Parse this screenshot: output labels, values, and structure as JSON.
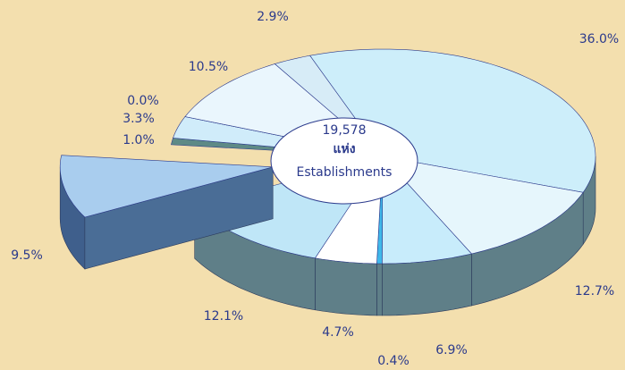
{
  "chart_data": {
    "type": "pie",
    "center_text": [
      "19,578",
      "แห่ง",
      "Establishments"
    ],
    "values": [
      36.0,
      12.7,
      6.9,
      0.4,
      4.7,
      12.1,
      9.5,
      1.0,
      3.3,
      0.0,
      10.5,
      2.9
    ],
    "value_labels": [
      "36.0%",
      "12.7%",
      "6.9%",
      "0.4%",
      "4.7%",
      "12.1%",
      "9.5%",
      "1.0%",
      "3.3%",
      "0.0%",
      "10.5%",
      "2.9%"
    ],
    "colors": [
      "#cdeefa",
      "#e6f6fc",
      "#c8ecfb",
      "#3fb8ea",
      "#ffffff",
      "#bfe6f7",
      "#a9cdee",
      "#5e8a86",
      "#d0ecfa",
      "#e0f3fb",
      "#eaf6fd",
      "#d7ecf7"
    ],
    "exploded": [
      6
    ]
  }
}
